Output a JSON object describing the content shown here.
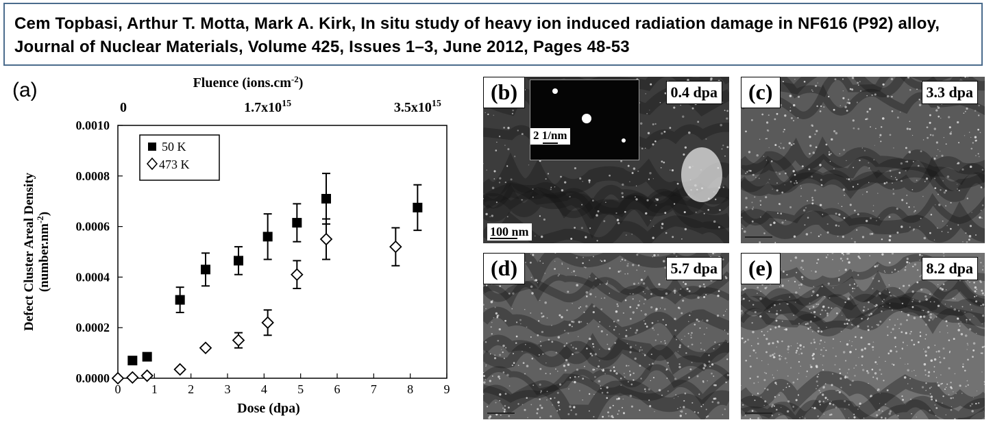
{
  "citation": "Cem Topbasi, Arthur T. Motta, Mark A. Kirk, In situ study of heavy ion induced radiation damage in NF616 (P92) alloy,  Journal of Nuclear Materials, Volume 425, Issues 1–3, June 2012, Pages 48-53",
  "chart_panel_label": "(a)",
  "chart_data": {
    "type": "scatter",
    "xlabel": "Dose (dpa)",
    "ylabel": "Defect Cluster  Areal Density (number.nm⁻²)",
    "ylabel_line1": "Defect Cluster  Areal Density",
    "ylabel_line2": "(number.nm",
    "ylabel_sup": "-2",
    "ylabel_close": ")",
    "top_axis_label": "Fluence (ions.cm",
    "top_axis_sup": "-2",
    "top_axis_close": ")",
    "top_ticks": [
      {
        "label": "0",
        "sup": "",
        "x": 0
      },
      {
        "label": "1.7x10",
        "sup": "15",
        "x": 4.1
      },
      {
        "label": "3.5x10",
        "sup": "15",
        "x": 8.2
      }
    ],
    "xlim": [
      0,
      9
    ],
    "ylim": [
      0,
      0.001
    ],
    "x_ticks": [
      0,
      1,
      2,
      3,
      4,
      5,
      6,
      7,
      8,
      9
    ],
    "x_tick_labels": [
      "0",
      "1",
      "2",
      "3",
      "4",
      "5",
      "6",
      "7",
      "8",
      "9"
    ],
    "y_ticks": [
      0,
      0.0002,
      0.0004,
      0.0006,
      0.0008,
      0.001
    ],
    "y_tick_labels": [
      "0.0000",
      "0.0002",
      "0.0004",
      "0.0006",
      "0.0008",
      "0.0010"
    ],
    "grid": false,
    "legend_position": "top-left",
    "series": [
      {
        "name": "50 K",
        "marker": "filled-square",
        "points": [
          {
            "x": 0.4,
            "y": 7e-05,
            "err": 0
          },
          {
            "x": 0.8,
            "y": 8.5e-05,
            "err": 0
          },
          {
            "x": 1.7,
            "y": 0.00031,
            "err": 5e-05
          },
          {
            "x": 2.4,
            "y": 0.00043,
            "err": 6.5e-05
          },
          {
            "x": 3.3,
            "y": 0.000465,
            "err": 5.5e-05
          },
          {
            "x": 4.1,
            "y": 0.00056,
            "err": 9e-05
          },
          {
            "x": 4.9,
            "y": 0.000615,
            "err": 7.5e-05
          },
          {
            "x": 5.7,
            "y": 0.00071,
            "err": 0.0001
          },
          {
            "x": 8.2,
            "y": 0.000675,
            "err": 9e-05
          }
        ]
      },
      {
        "name": "473 K",
        "marker": "open-diamond",
        "points": [
          {
            "x": 0.0,
            "y": 0.0,
            "err": 0
          },
          {
            "x": 0.4,
            "y": 3e-06,
            "err": 0
          },
          {
            "x": 0.8,
            "y": 1e-05,
            "err": 0
          },
          {
            "x": 1.7,
            "y": 3.5e-05,
            "err": 0
          },
          {
            "x": 2.4,
            "y": 0.00012,
            "err": 0
          },
          {
            "x": 3.3,
            "y": 0.00015,
            "err": 3e-05
          },
          {
            "x": 4.1,
            "y": 0.00022,
            "err": 5e-05
          },
          {
            "x": 4.9,
            "y": 0.00041,
            "err": 5.5e-05
          },
          {
            "x": 5.7,
            "y": 0.00055,
            "err": 8e-05
          },
          {
            "x": 7.6,
            "y": 0.00052,
            "err": 7.5e-05
          }
        ]
      }
    ]
  },
  "micrographs": [
    {
      "letter": "(b)",
      "dose": "0.4 dpa",
      "scale_bar": "100 nm",
      "inset_scale": "2 1/nm",
      "tone": "#3c3c3c"
    },
    {
      "letter": "(c)",
      "dose": "3.3 dpa",
      "scale_bar": "",
      "tone": "#5a5a5a"
    },
    {
      "letter": "(d)",
      "dose": "5.7 dpa",
      "scale_bar": "",
      "tone": "#606060"
    },
    {
      "letter": "(e)",
      "dose": "8.2 dpa",
      "scale_bar": "",
      "tone": "#727272"
    }
  ]
}
